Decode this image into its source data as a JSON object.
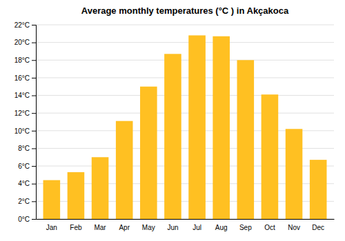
{
  "chart_data": {
    "type": "bar",
    "title": "Average monthly temperatures (°C ) in Akçakoca",
    "categories": [
      "Jan",
      "Feb",
      "Mar",
      "Apr",
      "May",
      "Jun",
      "Jul",
      "Aug",
      "Sep",
      "Oct",
      "Nov",
      "Dec"
    ],
    "values": [
      4.4,
      5.3,
      7.0,
      11.1,
      15.0,
      18.7,
      20.8,
      20.7,
      18.0,
      14.1,
      10.2,
      6.7
    ],
    "color": "#FFC022",
    "ylim": [
      0,
      22
    ],
    "yticks": [
      {
        "value": 0,
        "label": "0°C"
      },
      {
        "value": 2,
        "label": "2°C"
      },
      {
        "value": 4,
        "label": "4°C"
      },
      {
        "value": 6,
        "label": "6°C"
      },
      {
        "value": 8,
        "label": "8°C"
      },
      {
        "value": 10,
        "label": "10°C"
      },
      {
        "value": 12,
        "label": "12°C"
      },
      {
        "value": 14,
        "label": "14°C"
      },
      {
        "value": 16,
        "label": "16°C"
      },
      {
        "value": 18,
        "label": "18°C"
      },
      {
        "value": 20,
        "label": "20°C"
      },
      {
        "value": 22,
        "label": "22°C"
      }
    ],
    "grid": true
  }
}
